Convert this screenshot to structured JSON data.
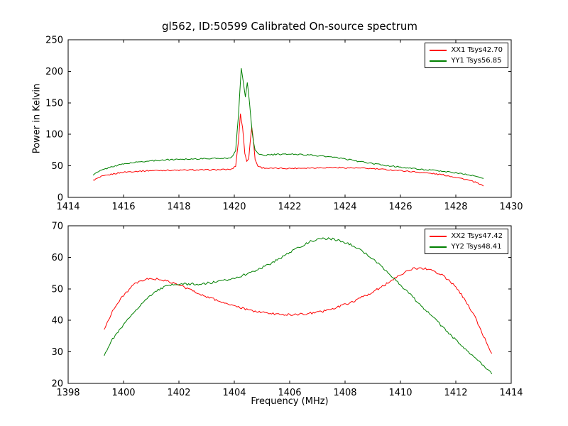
{
  "figure": {
    "background": "#ffffff",
    "axis_color": "#000000"
  },
  "chart_data": [
    {
      "type": "line",
      "title": "gl562, ID:50599 Calibrated On-source spectrum",
      "xlabel": "",
      "ylabel": "Power in Kelvin",
      "xlim": [
        1414,
        1430
      ],
      "ylim": [
        0,
        250
      ],
      "xticks": [
        1414,
        1416,
        1418,
        1420,
        1422,
        1424,
        1426,
        1428,
        1430
      ],
      "yticks": [
        0,
        50,
        100,
        150,
        200,
        250
      ],
      "grid": false,
      "legend_position": "upper right",
      "series": [
        {
          "name": "XX1 Tsys42.70",
          "color": "#ff0000",
          "noise": 1.0,
          "x": [
            1414.9,
            1415.2,
            1415.6,
            1416.0,
            1416.5,
            1417.0,
            1417.5,
            1418.0,
            1418.5,
            1419.0,
            1419.5,
            1419.9,
            1420.05,
            1420.15,
            1420.22,
            1420.3,
            1420.38,
            1420.45,
            1420.52,
            1420.58,
            1420.63,
            1420.68,
            1420.75,
            1420.85,
            1421.0,
            1421.3,
            1421.7,
            1422.0,
            1422.5,
            1423.0,
            1423.5,
            1424.0,
            1424.5,
            1425.0,
            1425.5,
            1426.0,
            1426.5,
            1427.0,
            1427.5,
            1428.0,
            1428.4,
            1428.7,
            1429.0
          ],
          "y": [
            27,
            33,
            37,
            40,
            41.5,
            42.5,
            43,
            43,
            43.5,
            43.5,
            44,
            44.5,
            50,
            90,
            133,
            110,
            70,
            58,
            62,
            90,
            112,
            95,
            60,
            50,
            47,
            46,
            46,
            46,
            46.5,
            47,
            47.5,
            47,
            46.5,
            45.5,
            44,
            42.5,
            40.5,
            38.5,
            36,
            32,
            28,
            24,
            18
          ]
        },
        {
          "name": "YY1 Tsys56.85",
          "color": "#008000",
          "noise": 1.0,
          "x": [
            1414.9,
            1415.2,
            1415.6,
            1416.0,
            1416.5,
            1417.0,
            1417.5,
            1418.0,
            1418.5,
            1419.0,
            1419.5,
            1419.9,
            1420.05,
            1420.15,
            1420.25,
            1420.32,
            1420.4,
            1420.47,
            1420.55,
            1420.65,
            1420.75,
            1420.9,
            1421.1,
            1421.5,
            1422.0,
            1422.5,
            1423.0,
            1423.5,
            1424.0,
            1424.5,
            1425.0,
            1425.5,
            1426.0,
            1426.5,
            1427.0,
            1427.5,
            1428.0,
            1428.5,
            1429.0
          ],
          "y": [
            36,
            43,
            49,
            53,
            56,
            58,
            59.5,
            60.5,
            61,
            61.5,
            62,
            63,
            75,
            130,
            205,
            185,
            160,
            183,
            150,
            100,
            75,
            68,
            67,
            68,
            68.5,
            68,
            66,
            64,
            61,
            57,
            53.5,
            50.5,
            48,
            45.5,
            43.5,
            41.5,
            39,
            35.5,
            30
          ]
        }
      ]
    },
    {
      "type": "line",
      "title": "",
      "xlabel": "Frequency (MHz)",
      "ylabel": "",
      "xlim": [
        1398,
        1414
      ],
      "ylim": [
        20,
        70
      ],
      "xticks": [
        1398,
        1400,
        1402,
        1404,
        1406,
        1408,
        1410,
        1412,
        1414
      ],
      "yticks": [
        20,
        30,
        40,
        50,
        60,
        70
      ],
      "grid": false,
      "legend_position": "upper right",
      "series": [
        {
          "name": "XX2 Tsys47.42",
          "color": "#ff0000",
          "noise": 0.35,
          "x": [
            1399.3,
            1399.6,
            1400.0,
            1400.4,
            1400.8,
            1401.1,
            1401.4,
            1401.8,
            1402.2,
            1402.6,
            1403.0,
            1403.5,
            1404.0,
            1404.5,
            1405.0,
            1405.5,
            1406.0,
            1406.5,
            1407.0,
            1407.5,
            1408.0,
            1408.5,
            1409.0,
            1409.4,
            1409.8,
            1410.2,
            1410.5,
            1410.8,
            1411.1,
            1411.5,
            1411.9,
            1412.3,
            1412.7,
            1413.0,
            1413.3
          ],
          "y": [
            37,
            43,
            48,
            51.5,
            53,
            53.2,
            52.8,
            51.8,
            50.5,
            49,
            47.5,
            46,
            44.5,
            43.3,
            42.5,
            42,
            41.8,
            42,
            42.5,
            43.5,
            45,
            46.8,
            49,
            51,
            53.5,
            55.5,
            56.5,
            56.5,
            56,
            54.5,
            51.5,
            47,
            41,
            35,
            29.5
          ]
        },
        {
          "name": "YY2 Tsys48.41",
          "color": "#008000",
          "noise": 0.35,
          "x": [
            1399.3,
            1399.6,
            1400.0,
            1400.4,
            1400.8,
            1401.2,
            1401.6,
            1402.0,
            1402.4,
            1402.8,
            1403.2,
            1403.6,
            1404.0,
            1404.4,
            1404.8,
            1405.2,
            1405.6,
            1406.0,
            1406.4,
            1406.8,
            1407.1,
            1407.4,
            1407.8,
            1408.2,
            1408.6,
            1409.0,
            1409.4,
            1409.8,
            1410.2,
            1410.6,
            1411.0,
            1411.4,
            1411.8,
            1412.2,
            1412.6,
            1413.0,
            1413.3
          ],
          "y": [
            29,
            34,
            38.5,
            43,
            46.5,
            49.5,
            51,
            51.5,
            51.5,
            51.5,
            52,
            52.5,
            53.5,
            54.5,
            56,
            57.5,
            59.5,
            61.5,
            63.5,
            65.2,
            65.8,
            66,
            65.3,
            64,
            62,
            59.5,
            56.5,
            53,
            49.5,
            46,
            42.5,
            39,
            35.5,
            32,
            29,
            25.5,
            23
          ]
        }
      ]
    }
  ]
}
